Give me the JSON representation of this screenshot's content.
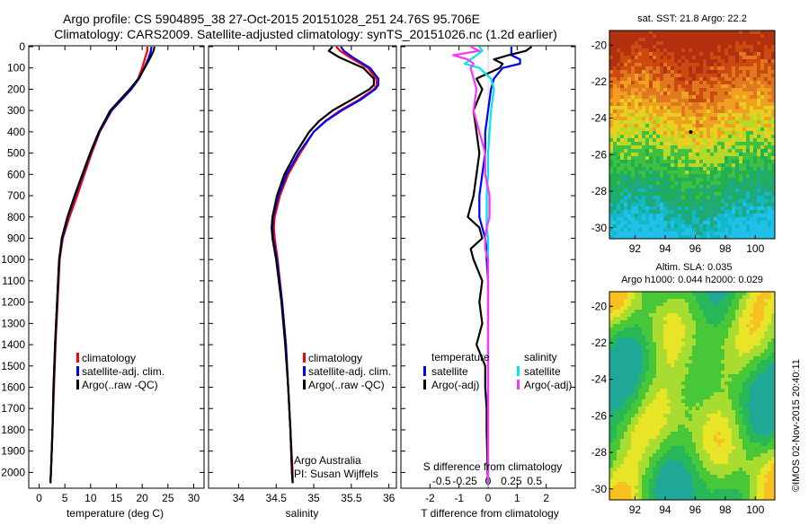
{
  "header": {
    "line1": "Argo profile: CS 5904895_38 27-Oct-2015 20151028_251 24.76S 95.706E",
    "line2": "Climatology: CARS2009. Satellite-adjusted climatology: synTS_20151026.nc (1.2d earlier)"
  },
  "stamp": "©IMOS 02-Nov-2015 20:40:11",
  "colors": {
    "climatology": "#ff0000",
    "satellite": "#0000ff",
    "argo": "#000000",
    "sal_satellite": "#00e5ee",
    "sal_argo": "#ff33ff"
  },
  "depth_ticks": [
    "0",
    "100",
    "200",
    "300",
    "400",
    "500",
    "600",
    "700",
    "800",
    "900",
    "1000",
    "1100",
    "1200",
    "1300",
    "1400",
    "1500",
    "1600",
    "1700",
    "1800",
    "1900",
    "2000"
  ],
  "chart_data": [
    {
      "type": "line",
      "id": "temperature",
      "xlabel": "temperature (deg C)",
      "xlim": [
        -2,
        32
      ],
      "ylim": [
        0,
        2070
      ],
      "xticks": [
        "0",
        "5",
        "10",
        "15",
        "20",
        "25",
        "30"
      ],
      "xtick_values": [
        0,
        5,
        10,
        15,
        20,
        25,
        30
      ],
      "legend": [
        "climatology",
        "satellite-adj. clim.",
        "Argo(..raw -QC)"
      ],
      "legend_placement": "lower-center",
      "depth": [
        0,
        20,
        50,
        100,
        150,
        200,
        250,
        300,
        400,
        500,
        600,
        700,
        800,
        900,
        1000,
        1200,
        1400,
        1600,
        1800,
        2000,
        2050
      ],
      "series": [
        {
          "name": "climatology",
          "color_key": "climatology",
          "values": [
            21.0,
            21.0,
            20.6,
            20.0,
            19.2,
            17.8,
            16.0,
            14.1,
            11.8,
            10.2,
            8.8,
            7.4,
            5.9,
            4.6,
            4.0,
            3.6,
            3.2,
            2.9,
            2.6,
            2.3,
            2.2
          ]
        },
        {
          "name": "satellite-adj. clim.",
          "color_key": "satellite",
          "values": [
            21.8,
            21.7,
            21.3,
            20.4,
            19.4,
            17.9,
            16.0,
            14.0,
            11.7,
            10.0,
            8.5,
            7.0,
            5.6,
            4.5,
            3.9,
            3.5,
            3.1,
            2.8,
            2.6,
            2.3,
            2.2
          ]
        },
        {
          "name": "Argo(..raw -QC)",
          "color_key": "argo",
          "values": [
            22.4,
            22.2,
            21.6,
            20.5,
            19.3,
            17.6,
            15.7,
            13.8,
            11.6,
            9.9,
            8.4,
            6.9,
            5.5,
            4.4,
            3.9,
            3.5,
            3.1,
            2.8,
            2.6,
            2.3,
            2.2
          ]
        }
      ]
    },
    {
      "type": "line",
      "id": "salinity",
      "xlabel": "salinity",
      "xlim": [
        33.6,
        36.1
      ],
      "ylim": [
        0,
        2070
      ],
      "xticks": [
        "34",
        "34.5",
        "35",
        "35.5",
        "36"
      ],
      "xtick_values": [
        34,
        34.5,
        35,
        35.5,
        36
      ],
      "legend": [
        "climatology",
        "satellite-adj. clim.",
        "Argo(..raw -QC)"
      ],
      "legend_placement": "lower-center",
      "annotation": [
        "Argo Australia",
        "PI: Susan Wijffels"
      ],
      "depth": [
        0,
        20,
        50,
        100,
        150,
        180,
        200,
        250,
        300,
        350,
        400,
        500,
        600,
        700,
        800,
        850,
        900,
        1000,
        1200,
        1400,
        1600,
        1800,
        2000,
        2050
      ],
      "series": [
        {
          "name": "climatology",
          "color_key": "climatology",
          "values": [
            35.3,
            35.35,
            35.48,
            35.72,
            35.83,
            35.84,
            35.8,
            35.6,
            35.35,
            35.15,
            35.0,
            34.82,
            34.66,
            34.55,
            34.48,
            34.47,
            34.48,
            34.52,
            34.58,
            34.63,
            34.66,
            34.69,
            34.72,
            34.72
          ]
        },
        {
          "name": "satellite-adj. clim.",
          "color_key": "satellite",
          "values": [
            35.36,
            35.4,
            35.52,
            35.75,
            35.86,
            35.86,
            35.82,
            35.62,
            35.37,
            35.16,
            35.0,
            34.8,
            34.64,
            34.53,
            34.46,
            34.45,
            34.46,
            34.51,
            34.58,
            34.63,
            34.66,
            34.69,
            34.71,
            34.72
          ]
        },
        {
          "name": "Argo(..raw -QC)",
          "color_key": "argo",
          "values": [
            35.25,
            35.2,
            35.34,
            35.66,
            35.8,
            35.8,
            35.74,
            35.5,
            35.25,
            35.07,
            34.94,
            34.76,
            34.61,
            34.51,
            34.45,
            34.44,
            34.45,
            34.5,
            34.57,
            34.62,
            34.66,
            34.69,
            34.71,
            34.72
          ]
        }
      ]
    },
    {
      "type": "line",
      "id": "difference",
      "xlabel": "T difference from climatology",
      "top_axis_label": "S difference from climatology",
      "xlim": [
        -3,
        3
      ],
      "ylim": [
        0,
        2070
      ],
      "xticks": [
        "-2",
        "-1",
        "0",
        "1",
        "2"
      ],
      "xtick_values": [
        -2,
        -1,
        0,
        1,
        2
      ],
      "top_ticks": [
        "-0.5",
        "-0.25",
        "0",
        "0.25",
        "0.5"
      ],
      "top_tick_values": [
        -1.6,
        -0.8,
        0,
        0.8,
        1.6
      ],
      "legend_groups": [
        {
          "title": "temperature",
          "items": [
            "satellite",
            "Argo(-adj)"
          ]
        },
        {
          "title": "salinity",
          "items": [
            "satellite",
            "Argo(-adj)"
          ]
        }
      ],
      "legend_placement": "lower-center",
      "depth": [
        0,
        20,
        40,
        60,
        80,
        100,
        150,
        200,
        300,
        400,
        500,
        600,
        700,
        800,
        850,
        900,
        950,
        1000,
        1100,
        1200,
        1300,
        1400,
        1500,
        1600,
        1700,
        1800,
        1900,
        2000,
        2050
      ],
      "series": [
        {
          "name": "temperature satellite",
          "color_key": "satellite",
          "values": [
            0.8,
            0.8,
            0.8,
            1.1,
            1.1,
            0.5,
            0.2,
            0.1,
            0,
            -0.1,
            -0.1,
            -0.2,
            -0.3,
            -0.3,
            -0.2,
            -0.1,
            -0.05,
            -0.05,
            0,
            0,
            0,
            0,
            0,
            0,
            0,
            0,
            0,
            0,
            0
          ]
        },
        {
          "name": "temperature Argo(-adj)",
          "color_key": "argo",
          "values": [
            1.5,
            1.3,
            0.7,
            0.2,
            0.5,
            0.4,
            -0.4,
            -0.2,
            -0.5,
            -0.4,
            -0.3,
            -0.4,
            -0.5,
            -0.7,
            -0.3,
            -0.2,
            -0.6,
            -0.5,
            -0.2,
            -0.3,
            -0.2,
            -0.4,
            -0.1,
            -0.1,
            -0.05,
            -0.05,
            -0.03,
            -0.02,
            0
          ]
        },
        {
          "name": "salinity satellite",
          "color_key": "sal_satellite",
          "values": [
            -0.3,
            -0.2,
            -0.4,
            -0.6,
            -0.8,
            -0.3,
            0.1,
            0.2,
            0.1,
            0.05,
            0,
            0,
            -0.05,
            -0.05,
            -0.05,
            0,
            0,
            0,
            0,
            0,
            0,
            0,
            0,
            0,
            0,
            0,
            0,
            0,
            0
          ]
        },
        {
          "name": "salinity Argo(-adj)",
          "color_key": "sal_argo",
          "values": [
            -0.6,
            -0.3,
            -1.2,
            -0.7,
            -0.5,
            -0.6,
            -0.5,
            -0.4,
            -0.5,
            -0.3,
            -0.1,
            -0.1,
            0.05,
            0.05,
            -0.05,
            -0.1,
            -0.1,
            0,
            0,
            0,
            0,
            0,
            0,
            0,
            0,
            0,
            0,
            0,
            0
          ]
        }
      ]
    },
    {
      "type": "heatmap",
      "id": "sst_map",
      "title": "sat. SST: 21.8 Argo: 22.2",
      "xticks": [
        "92",
        "94",
        "96",
        "98",
        "100"
      ],
      "xtick_values": [
        92,
        94,
        96,
        98,
        100
      ],
      "yticks": [
        "-20",
        "-22",
        "-24",
        "-26",
        "-28",
        "-30"
      ],
      "ytick_values": [
        -20,
        -22,
        -24,
        -26,
        -28,
        -30
      ],
      "xlim": [
        90.3,
        101.3
      ],
      "ylim": [
        -30.6,
        -19.2
      ],
      "profile_location": [
        95.706,
        -24.76
      ]
    },
    {
      "type": "heatmap",
      "id": "sla_map",
      "title": "Altim. SLA: 0.035",
      "subtitle": "Argo h1000: 0.044 h2000: 0.029",
      "xticks": [
        "92",
        "94",
        "96",
        "98",
        "100"
      ],
      "xtick_values": [
        92,
        94,
        96,
        98,
        100
      ],
      "yticks": [
        "-20",
        "-22",
        "-24",
        "-26",
        "-28",
        "-30"
      ],
      "ytick_values": [
        -20,
        -22,
        -24,
        -26,
        -28,
        -30
      ],
      "xlim": [
        90.3,
        101.3
      ],
      "ylim": [
        -30.6,
        -19.2
      ]
    }
  ]
}
